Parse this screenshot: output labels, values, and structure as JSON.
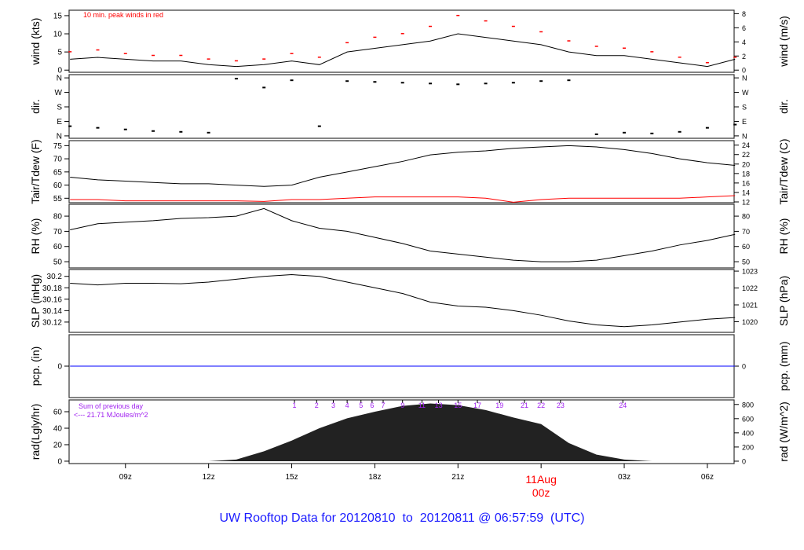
{
  "title": "UW Rooftop Data for 20120810  to  20120811 @ 06:57:59  (UTC)",
  "colors": {
    "line": "#000000",
    "peak": "#ff0000",
    "dew": "#ff0000",
    "pcp": "#0000ff",
    "rad_fill": "#222222",
    "annotation": "#a020f0",
    "title": "#1a1aff",
    "date_label": "#ff0000"
  },
  "chart_data": [
    {
      "type": "line",
      "id": "wind",
      "ylabel": "wind (kts)",
      "ylabel_right": "wind (m/s)",
      "ylim": [
        -0.6,
        16.5
      ],
      "yticks": [
        0,
        5,
        10,
        15
      ],
      "yticks_right": [
        0,
        2,
        4,
        6,
        8
      ],
      "annotation": "10 min. peak winds in red",
      "x": [
        "07",
        "08",
        "09",
        "10",
        "11",
        "12",
        "13",
        "14",
        "15",
        "16",
        "17",
        "18",
        "19",
        "20",
        "21",
        "22",
        "23",
        "00",
        "01",
        "02",
        "03",
        "04",
        "05",
        "06",
        "07"
      ],
      "series": [
        {
          "values": [
            3,
            3.5,
            3,
            2.5,
            2.5,
            1.5,
            1,
            1.5,
            2.5,
            1.5,
            5,
            6,
            7,
            8,
            10,
            9,
            8,
            7,
            5,
            4,
            4,
            3,
            2,
            1,
            3
          ]
        },
        {
          "values": [
            5,
            5.5,
            4.5,
            4,
            4,
            3,
            2.5,
            3,
            4.5,
            3.5,
            7.5,
            9,
            10,
            12,
            15,
            13.5,
            12,
            10.5,
            8,
            6.5,
            6,
            5,
            3.5,
            2,
            3.5
          ]
        }
      ]
    },
    {
      "type": "scatter",
      "id": "dir",
      "ylabel": "dir.",
      "ylabel_right": "dir.",
      "ylim": [
        -15,
        380
      ],
      "yticks": [
        0,
        90,
        180,
        270,
        360
      ],
      "ytick_labels": [
        "N",
        "E",
        "S",
        "W",
        "N"
      ],
      "values": [
        60,
        50,
        40,
        30,
        25,
        20,
        355,
        300,
        345,
        60,
        340,
        335,
        330,
        325,
        320,
        325,
        330,
        340,
        345,
        10,
        20,
        15,
        25,
        50,
        70
      ]
    },
    {
      "type": "line",
      "id": "temp",
      "ylabel": "Tair/Tdew (F)",
      "ylabel_right": "Tair/Tdew (C)",
      "ylim": [
        53.3,
        76.9
      ],
      "yticks": [
        55,
        60,
        65,
        70,
        75
      ],
      "yticks_right": [
        12,
        14,
        16,
        18,
        20,
        22,
        24
      ],
      "series": [
        {
          "values": [
            63,
            62,
            61.5,
            61,
            60.5,
            60.5,
            60,
            59.5,
            60,
            63,
            65,
            67,
            69,
            71.5,
            72.5,
            73,
            74,
            74.5,
            75,
            74.5,
            73.5,
            72,
            70,
            68.5,
            67.5
          ]
        },
        {
          "values": [
            54.5,
            54.5,
            54,
            54,
            54,
            54,
            54,
            53.8,
            54.5,
            54.5,
            55,
            55.5,
            55.5,
            55.5,
            55.5,
            55,
            53.5,
            54.5,
            55,
            55,
            55,
            55,
            55,
            55.5,
            56
          ]
        }
      ]
    },
    {
      "type": "line",
      "id": "rh",
      "ylabel": "RH (%)",
      "ylabel_right": "RH (%)",
      "ylim": [
        45.9,
        87.8
      ],
      "yticks": [
        50,
        60,
        70,
        80
      ],
      "yticks_right": [
        50,
        60,
        70,
        80
      ],
      "series": [
        {
          "values": [
            71,
            75,
            76,
            77,
            78.5,
            79,
            80,
            85,
            77,
            72,
            70,
            66,
            62,
            57,
            55,
            53,
            51,
            50,
            50,
            51,
            54,
            57,
            61,
            64,
            68
          ]
        }
      ]
    },
    {
      "type": "line",
      "id": "slp",
      "ylabel": "SLP (inHg)",
      "ylabel_right": "SLP (hPa)",
      "ylim": [
        30.102,
        30.212
      ],
      "yticks": [
        30.12,
        30.14,
        30.16,
        30.18,
        30.2
      ],
      "yticks_right": [
        1020,
        1021,
        1022,
        1023
      ],
      "series": [
        {
          "values": [
            30.188,
            30.185,
            30.188,
            30.188,
            30.187,
            30.19,
            30.195,
            30.2,
            30.203,
            30.2,
            30.19,
            30.18,
            30.17,
            30.155,
            30.148,
            30.146,
            30.14,
            30.132,
            30.122,
            30.115,
            30.112,
            30.115,
            30.12,
            30.125,
            30.128
          ]
        }
      ]
    },
    {
      "type": "line",
      "id": "pcp",
      "ylabel": "pcp. (in)",
      "ylabel_right": "pcp. (mm)",
      "ylim": [
        -1,
        1
      ],
      "yticks": [
        0
      ],
      "yticks_right": [
        0
      ],
      "series": [
        {
          "values": [
            0,
            0,
            0,
            0,
            0,
            0,
            0,
            0,
            0,
            0,
            0,
            0,
            0,
            0,
            0,
            0,
            0,
            0,
            0,
            0,
            0,
            0,
            0,
            0,
            0
          ]
        }
      ]
    },
    {
      "type": "area",
      "id": "rad",
      "ylabel": "rad(Lgly/hr)",
      "ylabel_right": "rad (W/m^2)",
      "ylim": [
        -2.9,
        74.3
      ],
      "yticks": [
        0,
        20,
        40,
        60
      ],
      "yticks_right": [
        0,
        200,
        400,
        600,
        800
      ],
      "annotation_lines": [
        "Sum of previous day",
        "<--- 21.71 MJoules/m^2"
      ],
      "series": [
        {
          "values": [
            0,
            0,
            0,
            0,
            0,
            0,
            2,
            12,
            25,
            40,
            52,
            60,
            67,
            70,
            68,
            62,
            53,
            45,
            22,
            8,
            2,
            0,
            0,
            0,
            0
          ]
        }
      ],
      "hour_markers": [
        {
          "label": "1",
          "hour": 15.1
        },
        {
          "label": "2",
          "hour": 15.9
        },
        {
          "label": "3",
          "hour": 16.5
        },
        {
          "label": "4",
          "hour": 17.0
        },
        {
          "label": "5",
          "hour": 17.5
        },
        {
          "label": "6",
          "hour": 17.9
        },
        {
          "label": "7",
          "hour": 18.3
        },
        {
          "label": "9",
          "hour": 19.0
        },
        {
          "label": "11",
          "hour": 19.7
        },
        {
          "label": "13",
          "hour": 20.3
        },
        {
          "label": "15",
          "hour": 21.0
        },
        {
          "label": "17",
          "hour": 21.7
        },
        {
          "label": "19",
          "hour": 22.5
        },
        {
          "label": "21",
          "hour": 23.4
        },
        {
          "label": "22",
          "hour": 24.0
        },
        {
          "label": "23",
          "hour": 24.7
        },
        {
          "label": "24",
          "hour": 26.95
        }
      ]
    }
  ],
  "x_axis": {
    "start_hour": 6.966,
    "end_hour": 30.966,
    "ticks": [
      {
        "label": "09z",
        "hour": 9
      },
      {
        "label": "12z",
        "hour": 12
      },
      {
        "label": "15z",
        "hour": 15
      },
      {
        "label": "18z",
        "hour": 18
      },
      {
        "label": "21z",
        "hour": 21
      },
      {
        "label": "00z",
        "hour": 24
      },
      {
        "label": "03z",
        "hour": 27
      },
      {
        "label": "06z",
        "hour": 30
      }
    ],
    "date_label": "11Aug",
    "date_label_time": "00z"
  }
}
